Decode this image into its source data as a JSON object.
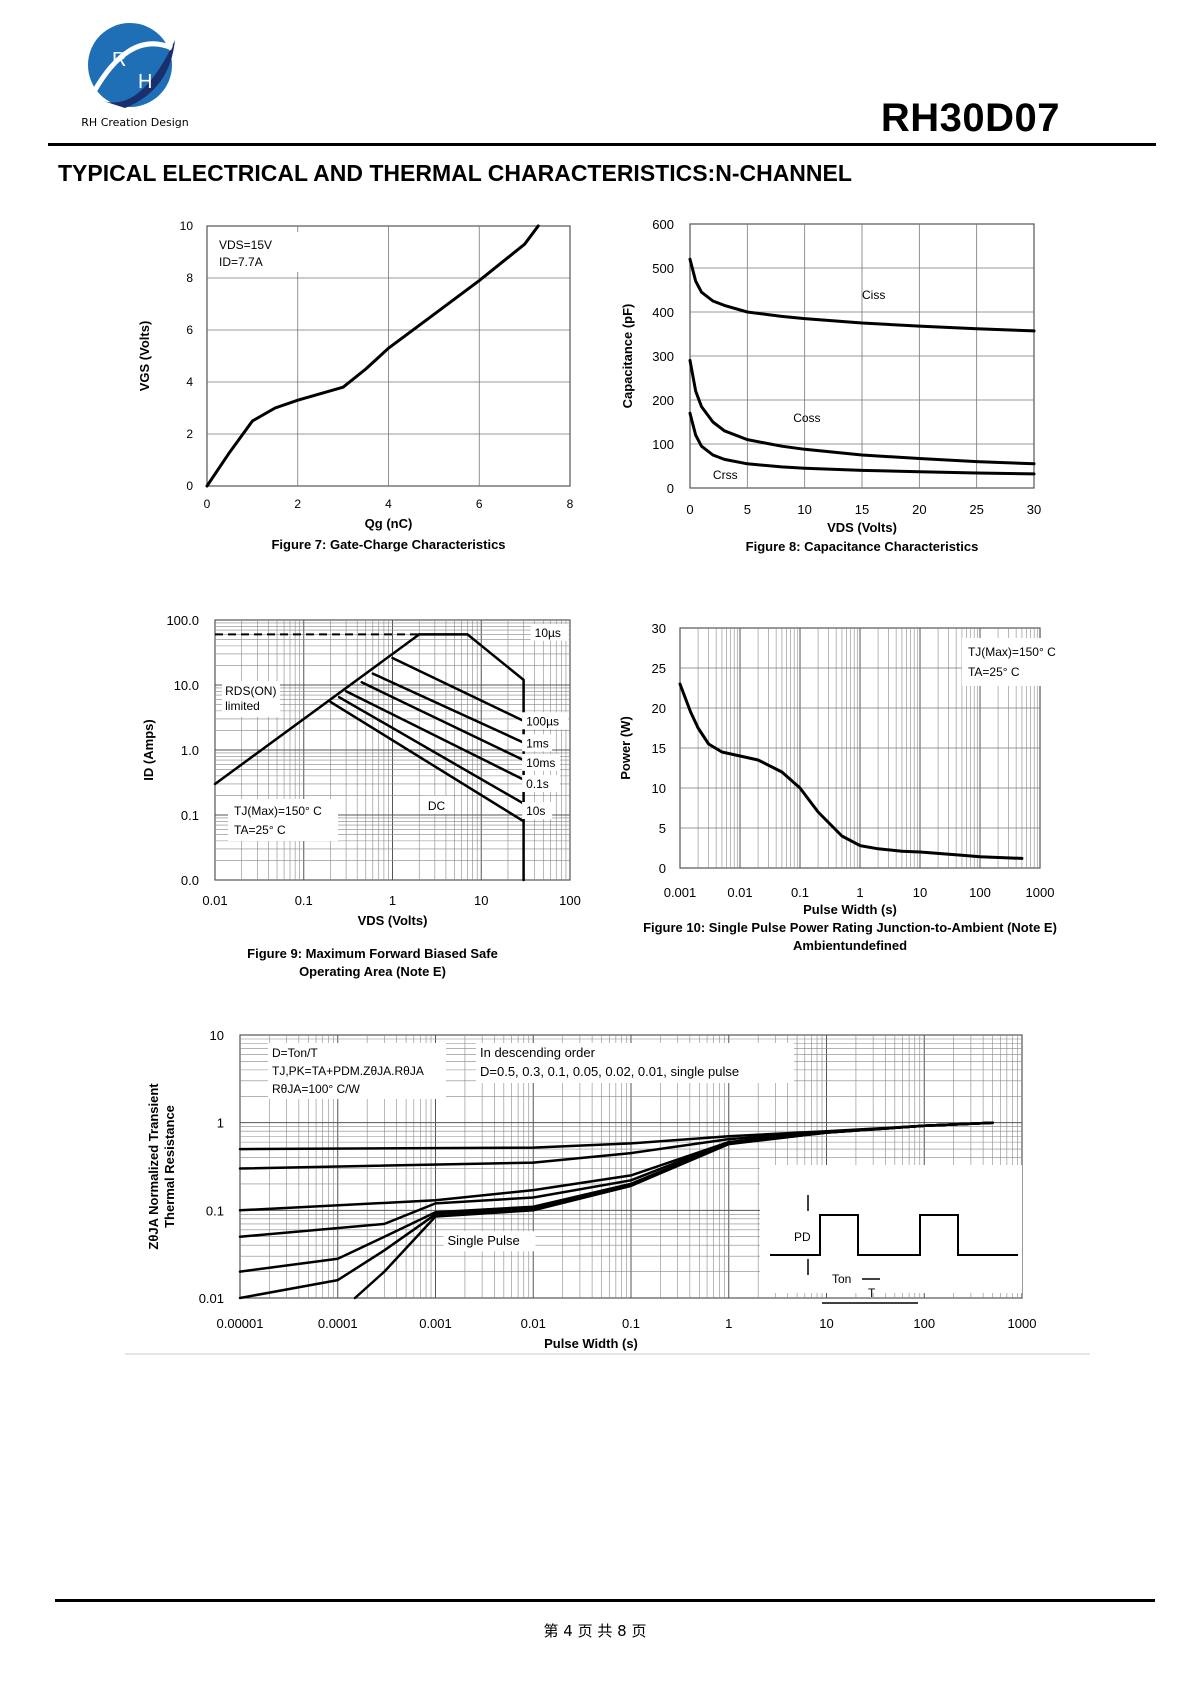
{
  "header": {
    "company": "RH Creation Design",
    "part_number": "RH30D07",
    "logo_letters": [
      "R",
      "H"
    ],
    "section_title": "TYPICAL ELECTRICAL AND THERMAL CHARACTERISTICS:N-CHANNEL"
  },
  "footer": {
    "page": "第 4 页 共 8 页"
  },
  "colors": {
    "logo_blue": "#1e6fb5",
    "logo_dark": "#1a2f6e",
    "line": "#000000",
    "grid": "#555555"
  },
  "chart_data": [
    {
      "id": "fig7",
      "type": "line",
      "caption": "Figure 7: Gate-Charge Characteristics",
      "xlabel": "Qg (nC)",
      "ylabel": "VGS (Volts)",
      "xlim": [
        0,
        8
      ],
      "ylim": [
        0,
        10
      ],
      "xticks": [
        "0",
        "2",
        "4",
        "6",
        "8"
      ],
      "yticks": [
        "0",
        "2",
        "4",
        "6",
        "8",
        "10"
      ],
      "annotations": [
        "VDS=15V",
        "ID=7.7A"
      ],
      "grid": true,
      "series": [
        {
          "x": [
            0,
            0.5,
            1,
            1.5,
            2,
            2.5,
            3,
            3.5,
            4,
            5,
            6,
            7,
            7.3
          ],
          "y": [
            0,
            1.3,
            2.5,
            3.0,
            3.3,
            3.55,
            3.8,
            4.5,
            5.3,
            6.6,
            7.9,
            9.3,
            10
          ]
        }
      ]
    },
    {
      "id": "fig8",
      "type": "line",
      "caption": "Figure 8: Capacitance Characteristics",
      "xlabel": "VDS (Volts)",
      "ylabel": "Capacitance (pF)",
      "xlim": [
        0,
        30
      ],
      "ylim": [
        0,
        600
      ],
      "xticks": [
        "0",
        "5",
        "10",
        "15",
        "20",
        "25",
        "30"
      ],
      "yticks": [
        "0",
        "100",
        "200",
        "300",
        "400",
        "500",
        "600"
      ],
      "grid": true,
      "series": [
        {
          "name": "Ciss",
          "x": [
            0,
            0.5,
            1,
            2,
            3,
            5,
            8,
            10,
            15,
            20,
            25,
            30
          ],
          "y": [
            520,
            470,
            445,
            425,
            415,
            400,
            390,
            385,
            375,
            368,
            362,
            357
          ]
        },
        {
          "name": "Coss",
          "x": [
            0,
            0.5,
            1,
            2,
            3,
            5,
            8,
            10,
            15,
            20,
            25,
            30
          ],
          "y": [
            290,
            220,
            185,
            150,
            130,
            110,
            95,
            88,
            75,
            67,
            60,
            55
          ]
        },
        {
          "name": "Crss",
          "x": [
            0,
            0.5,
            1,
            2,
            3,
            5,
            8,
            10,
            15,
            20,
            25,
            30
          ],
          "y": [
            170,
            120,
            95,
            75,
            65,
            55,
            48,
            45,
            40,
            37,
            34,
            32
          ]
        }
      ]
    },
    {
      "id": "fig9",
      "type": "line",
      "caption": "Figure 9: Maximum Forward Biased Safe Operating Area (Note E)",
      "xlabel": "VDS (Volts)",
      "ylabel": "ID (Amps)",
      "xscale": "log",
      "yscale": "log",
      "xticks": [
        "0.01",
        "0.1",
        "1",
        "10",
        "100"
      ],
      "yticks": [
        "0.0",
        "0.1",
        "1.0",
        "10.0",
        "100.0"
      ],
      "annotations": [
        "RDS(ON) limited",
        "TJ(Max)=150° C",
        "TA=25° C",
        "DC"
      ],
      "grid": true,
      "series": [
        {
          "name": "10µs",
          "x": [
            2,
            7,
            30,
            30
          ],
          "y": [
            60,
            60,
            12,
            0.01
          ]
        },
        {
          "name": "100µs",
          "x": [
            1,
            30
          ],
          "y": [
            26,
            2.8
          ]
        },
        {
          "name": "1ms",
          "x": [
            0.6,
            30
          ],
          "y": [
            15,
            1.3
          ]
        },
        {
          "name": "10ms",
          "x": [
            0.45,
            30
          ],
          "y": [
            11,
            0.7
          ]
        },
        {
          "name": "0.1s",
          "x": [
            0.3,
            30
          ],
          "y": [
            8,
            0.35
          ]
        },
        {
          "name": "10s",
          "x": [
            0.25,
            30
          ],
          "y": [
            6.5,
            0.15
          ]
        },
        {
          "name": "DC",
          "x": [
            0.2,
            30
          ],
          "y": [
            5.5,
            0.08
          ]
        },
        {
          "name": "RDS(ON) limited",
          "x": [
            0.01,
            2
          ],
          "y": [
            0.3,
            60
          ]
        }
      ]
    },
    {
      "id": "fig10",
      "type": "line",
      "caption": "Figure 10: Single Pulse Power Rating Junction-to-Ambient (Note E)",
      "xlabel": "Pulse Width (s)",
      "ylabel": "Power (W)",
      "xscale": "log",
      "xlim": [
        0.001,
        1000
      ],
      "ylim": [
        0,
        30
      ],
      "xticks": [
        "0.001",
        "0.01",
        "0.1",
        "1",
        "10",
        "100",
        "1000"
      ],
      "yticks": [
        "0",
        "5",
        "10",
        "15",
        "20",
        "25",
        "30"
      ],
      "annotations": [
        "TJ(Max)=150° C",
        "TA=25° C"
      ],
      "grid": true,
      "series": [
        {
          "x": [
            0.001,
            0.0015,
            0.002,
            0.003,
            0.005,
            0.01,
            0.02,
            0.05,
            0.1,
            0.2,
            0.5,
            1,
            2,
            5,
            10,
            50,
            100,
            500
          ],
          "y": [
            23,
            19.5,
            17.5,
            15.5,
            14.5,
            14,
            13.5,
            12,
            10,
            7,
            4,
            2.8,
            2.4,
            2.1,
            2,
            1.6,
            1.4,
            1.2
          ]
        }
      ]
    },
    {
      "id": "fig11",
      "type": "line",
      "caption": "",
      "xlabel": "Pulse Width (s)",
      "ylabel": "ZθJA Normalized Transient Thermal Resistance",
      "xscale": "log",
      "yscale": "log",
      "xlim": [
        1e-05,
        1000
      ],
      "ylim": [
        0.01,
        10
      ],
      "xticks": [
        "0.00001",
        "0.0001",
        "0.001",
        "0.01",
        "0.1",
        "1",
        "10",
        "100",
        "1000"
      ],
      "yticks": [
        "0.01",
        "0.1",
        "1",
        "10"
      ],
      "annotations": [
        "D=Ton/T",
        "TJ,PK=TA+PDM.ZθJA.RθJA",
        "RθJA=100° C/W",
        "In descending order",
        "D=0.5, 0.3, 0.1, 0.05, 0.02, 0.01, single pulse",
        "Single Pulse",
        "PD",
        "Ton",
        "T"
      ],
      "grid": true,
      "series": [
        {
          "name": "D=0.5",
          "x": [
            1e-05,
            0.01,
            0.1,
            1,
            10,
            100,
            500
          ],
          "y": [
            0.5,
            0.52,
            0.58,
            0.7,
            0.8,
            0.92,
            1.0
          ]
        },
        {
          "name": "D=0.3",
          "x": [
            1e-05,
            0.01,
            0.1,
            1,
            10,
            100,
            500
          ],
          "y": [
            0.3,
            0.35,
            0.45,
            0.65,
            0.78,
            0.92,
            1.0
          ]
        },
        {
          "name": "D=0.1",
          "x": [
            1e-05,
            0.001,
            0.01,
            0.1,
            1,
            10,
            100,
            500
          ],
          "y": [
            0.1,
            0.13,
            0.17,
            0.25,
            0.6,
            0.78,
            0.92,
            1.0
          ]
        },
        {
          "name": "D=0.05",
          "x": [
            1e-05,
            0.0003,
            0.001,
            0.01,
            0.1,
            1,
            10,
            100,
            500
          ],
          "y": [
            0.05,
            0.07,
            0.12,
            0.14,
            0.22,
            0.6,
            0.78,
            0.92,
            1.0
          ]
        },
        {
          "name": "D=0.02",
          "x": [
            1e-05,
            0.0001,
            0.0003,
            0.001,
            0.01,
            0.1,
            1,
            10,
            100,
            500
          ],
          "y": [
            0.02,
            0.028,
            0.05,
            0.095,
            0.11,
            0.2,
            0.58,
            0.77,
            0.92,
            1.0
          ]
        },
        {
          "name": "D=0.01",
          "x": [
            1e-05,
            0.0001,
            0.0003,
            0.001,
            0.01,
            0.1,
            1,
            10,
            100,
            500
          ],
          "y": [
            0.01,
            0.016,
            0.035,
            0.09,
            0.105,
            0.2,
            0.58,
            0.77,
            0.92,
            1.0
          ]
        },
        {
          "name": "single pulse",
          "x": [
            0.00015,
            0.0003,
            0.001,
            0.01,
            0.1,
            1,
            10,
            100,
            500
          ],
          "y": [
            0.01,
            0.02,
            0.085,
            0.1,
            0.19,
            0.57,
            0.77,
            0.92,
            1.0
          ]
        }
      ]
    }
  ]
}
